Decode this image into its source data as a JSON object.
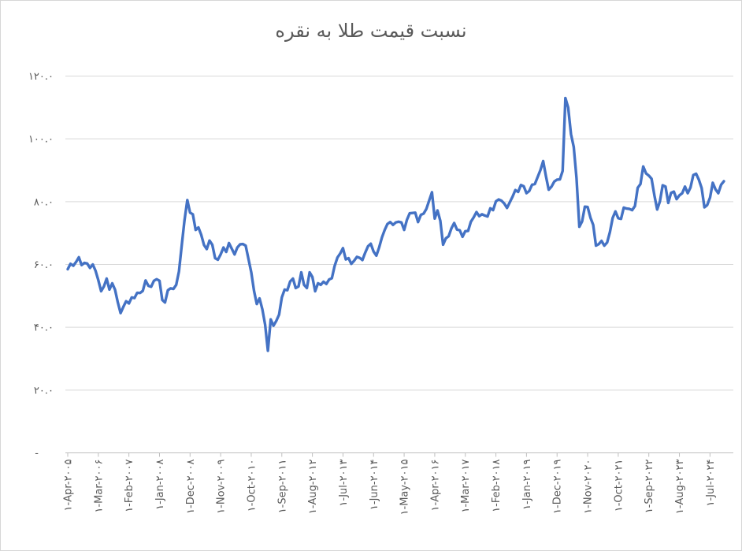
{
  "page": {
    "background": "#ffffff",
    "border_color": "#d6d6d6"
  },
  "chart_data": {
    "type": "line",
    "title": "نسبت قیمت طلا به نقره",
    "title_color": "#595959",
    "line_color": "#4472C4",
    "gridline_color": "#d9d9d9",
    "axis_color": "#bfbfbf",
    "label_color": "#595959",
    "grid": true,
    "legend": "none",
    "ylim": [
      0,
      120
    ],
    "y_tick_step": 20,
    "y_ticks": [
      {
        "value": 120,
        "label": "۱۲۰.۰"
      },
      {
        "value": 100,
        "label": "۱۰۰.۰"
      },
      {
        "value": 80,
        "label": "۸۰.۰"
      },
      {
        "value": 60,
        "label": "۶۰.۰"
      },
      {
        "value": 40,
        "label": "۴۰.۰"
      },
      {
        "value": 20,
        "label": "۲۰.۰"
      },
      {
        "value": 0,
        "label": "-"
      }
    ],
    "x_unit": "monthly",
    "x_label_every": 11,
    "x_ticks": [
      {
        "index": 0,
        "label": "۱-Apr-۲۰۰۵"
      },
      {
        "index": 11,
        "label": "۱-Mar-۲۰۰۶"
      },
      {
        "index": 22,
        "label": "۱-Feb-۲۰۰۷"
      },
      {
        "index": 33,
        "label": "۱-Jan-۲۰۰۸"
      },
      {
        "index": 44,
        "label": "۱-Dec-۲۰۰۸"
      },
      {
        "index": 55,
        "label": "۱-Nov-۲۰۰۹"
      },
      {
        "index": 66,
        "label": "۱-Oct-۲۰۱۰"
      },
      {
        "index": 77,
        "label": "۱-Sep-۲۰۱۱"
      },
      {
        "index": 88,
        "label": "۱-Aug-۲۰۱۲"
      },
      {
        "index": 99,
        "label": "۱-Jul-۲۰۱۳"
      },
      {
        "index": 110,
        "label": "۱-Jun-۲۰۱۴"
      },
      {
        "index": 121,
        "label": "۱-May-۲۰۱۵"
      },
      {
        "index": 132,
        "label": "۱-Apr-۲۰۱۶"
      },
      {
        "index": 143,
        "label": "۱-Mar-۲۰۱۷"
      },
      {
        "index": 154,
        "label": "۱-Feb-۲۰۱۸"
      },
      {
        "index": 165,
        "label": "۱-Jan-۲۰۱۹"
      },
      {
        "index": 176,
        "label": "۱-Dec-۲۰۱۹"
      },
      {
        "index": 187,
        "label": "۱-Nov-۲۰۲۰"
      },
      {
        "index": 198,
        "label": "۱-Oct-۲۰۲۱"
      },
      {
        "index": 209,
        "label": "۱-Sep-۲۰۲۲"
      },
      {
        "index": 220,
        "label": "۱-Aug-۲۰۲۳"
      },
      {
        "index": 231,
        "label": "۱-Jul-۲۰۲۴"
      }
    ],
    "series": [
      {
        "values": [
          58.5,
          60.2,
          59.6,
          60.8,
          62.3,
          59.8,
          60.5,
          60.3,
          58.9,
          60.0,
          58.0,
          55.0,
          51.5,
          53.0,
          55.5,
          52.0,
          54.0,
          52.0,
          48.0,
          44.5,
          46.5,
          48.3,
          47.6,
          49.5,
          49.3,
          51.0,
          50.9,
          51.6,
          54.9,
          53.2,
          52.9,
          54.8,
          55.3,
          54.8,
          48.7,
          47.9,
          51.8,
          52.4,
          52.2,
          53.5,
          57.8,
          66.0,
          74.0,
          80.5,
          76.5,
          76.0,
          71.0,
          71.8,
          69.5,
          66.2,
          64.9,
          67.6,
          66.3,
          62.0,
          61.5,
          63.2,
          65.4,
          64.0,
          66.8,
          65.0,
          63.2,
          65.4,
          66.4,
          66.5,
          66.0,
          61.8,
          57.5,
          51.6,
          47.4,
          49.2,
          45.7,
          40.8,
          32.5,
          42.5,
          40.5,
          42.0,
          44.0,
          49.5,
          52.0,
          51.8,
          54.6,
          55.5,
          52.5,
          53.0,
          57.5,
          53.5,
          52.5,
          57.5,
          56.0,
          51.5,
          54.0,
          53.5,
          54.5,
          53.8,
          55.2,
          55.6,
          59.5,
          62.2,
          63.5,
          65.2,
          61.6,
          62.0,
          60.2,
          61.2,
          62.4,
          62.1,
          61.4,
          63.8,
          65.8,
          66.6,
          64.1,
          62.8,
          65.4,
          68.6,
          71.0,
          72.9,
          73.5,
          72.6,
          73.4,
          73.6,
          73.4,
          71.0,
          74.2,
          76.3,
          76.4,
          76.5,
          73.5,
          75.8,
          76.2,
          77.7,
          80.4,
          83.0,
          74.6,
          77.2,
          73.9,
          66.3,
          68.3,
          69.0,
          71.5,
          73.2,
          71.1,
          70.9,
          68.8,
          70.6,
          70.7,
          73.6,
          75.0,
          76.7,
          75.4,
          76.0,
          75.6,
          75.3,
          77.9,
          77.3,
          80.1,
          80.7,
          80.3,
          79.4,
          78.0,
          79.8,
          81.6,
          83.7,
          83.1,
          85.3,
          84.9,
          82.7,
          83.4,
          85.4,
          85.6,
          87.8,
          90.0,
          92.9,
          88.1,
          83.8,
          84.8,
          86.4,
          87.0,
          87.1,
          89.8,
          113.0,
          110.0,
          101.5,
          97.4,
          87.5,
          72.0,
          73.7,
          78.4,
          78.3,
          74.9,
          72.6,
          66.0,
          66.5,
          67.5,
          66.0,
          67.0,
          70.3,
          74.8,
          76.9,
          74.7,
          74.5,
          78.1,
          77.8,
          77.7,
          77.3,
          78.6,
          84.4,
          85.6,
          91.2,
          89.0,
          88.3,
          87.3,
          82.0,
          77.5,
          80.1,
          85.2,
          84.8,
          79.6,
          82.8,
          83.2,
          80.8,
          82.0,
          82.7,
          84.8,
          82.7,
          84.5,
          88.5,
          88.9,
          87.0,
          84.3,
          78.2,
          78.9,
          81.3,
          86.0,
          83.9,
          82.7,
          85.4,
          86.5
        ]
      }
    ]
  }
}
